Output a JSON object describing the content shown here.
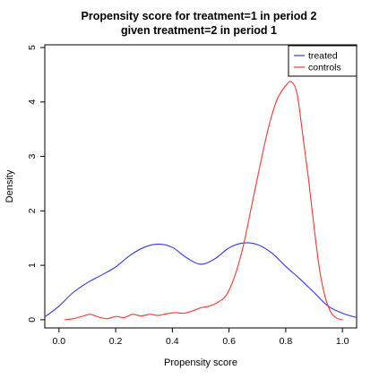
{
  "chart_data": {
    "type": "line",
    "title": [
      "Propensity score for treatment=1 in period 2",
      "given treatment=2 in period 1"
    ],
    "xlabel": "Propensity score",
    "ylabel": "Density",
    "xlim": [
      -0.05,
      1.05
    ],
    "ylim": [
      -0.15,
      5.05
    ],
    "x_ticks": [
      0.0,
      0.2,
      0.4,
      0.6,
      0.8,
      1.0
    ],
    "x_tick_labels": [
      "0.0",
      "0.2",
      "0.4",
      "0.6",
      "0.8",
      "1.0"
    ],
    "y_ticks": [
      0,
      1,
      2,
      3,
      4,
      5
    ],
    "y_tick_labels": [
      "0",
      "1",
      "2",
      "3",
      "4",
      "5"
    ],
    "grid": false,
    "legend": "top-right",
    "series": [
      {
        "name": "treated",
        "color": "#3333ff",
        "x": [
          -0.05,
          0.0,
          0.05,
          0.1,
          0.15,
          0.2,
          0.25,
          0.3,
          0.35,
          0.4,
          0.45,
          0.5,
          0.55,
          0.6,
          0.65,
          0.7,
          0.75,
          0.8,
          0.85,
          0.9,
          0.95,
          1.0,
          1.05
        ],
        "y": [
          0.05,
          0.25,
          0.5,
          0.68,
          0.82,
          0.97,
          1.18,
          1.33,
          1.39,
          1.33,
          1.14,
          1.02,
          1.12,
          1.32,
          1.41,
          1.38,
          1.23,
          0.98,
          0.75,
          0.5,
          0.25,
          0.12,
          0.04
        ]
      },
      {
        "name": "controls",
        "color": "#ff3333",
        "x": [
          0.02,
          0.05,
          0.08,
          0.11,
          0.14,
          0.17,
          0.2,
          0.23,
          0.26,
          0.29,
          0.32,
          0.35,
          0.38,
          0.41,
          0.44,
          0.47,
          0.5,
          0.53,
          0.56,
          0.59,
          0.62,
          0.65,
          0.68,
          0.71,
          0.74,
          0.77,
          0.8,
          0.82,
          0.84,
          0.86,
          0.88,
          0.9,
          0.92,
          0.94,
          0.96,
          0.98,
          1.0
        ],
        "y": [
          0.0,
          0.02,
          0.06,
          0.1,
          0.05,
          0.02,
          0.06,
          0.04,
          0.1,
          0.07,
          0.1,
          0.08,
          0.11,
          0.13,
          0.12,
          0.16,
          0.22,
          0.25,
          0.32,
          0.45,
          0.8,
          1.35,
          2.1,
          2.85,
          3.55,
          4.05,
          4.3,
          4.37,
          4.15,
          3.4,
          2.6,
          1.7,
          0.9,
          0.4,
          0.13,
          0.03,
          0.0
        ]
      }
    ]
  }
}
